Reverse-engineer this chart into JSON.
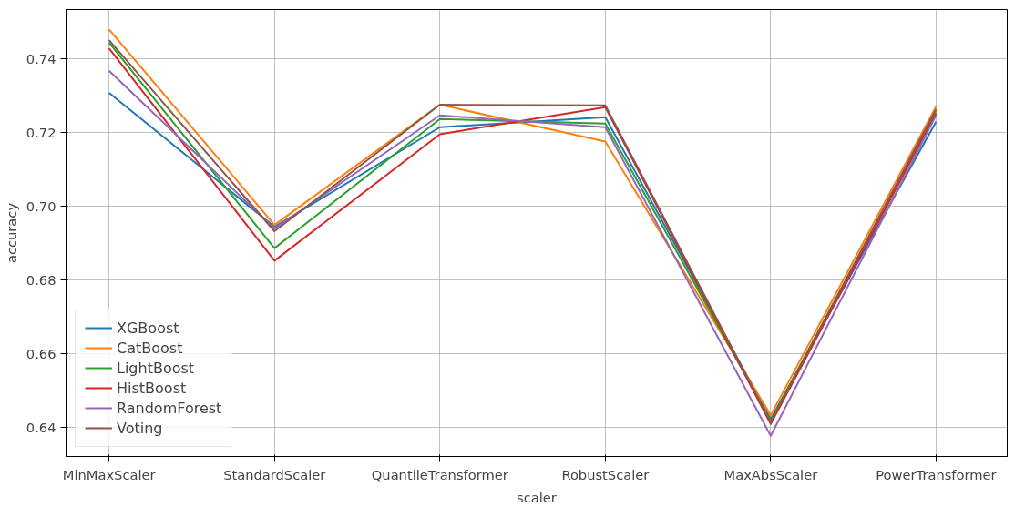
{
  "chart_data": {
    "type": "line",
    "xlabel": "scaler",
    "ylabel": "accuracy",
    "categories": [
      "MinMaxScaler",
      "StandardScaler",
      "QuantileTransformer",
      "RobustScaler",
      "MaxAbsScaler",
      "PowerTransformer"
    ],
    "ylim": [
      0.6322,
      0.7534
    ],
    "yticks": [
      {
        "value": 0.64,
        "label": "0.64"
      },
      {
        "value": 0.66,
        "label": "0.66"
      },
      {
        "value": 0.68,
        "label": "0.68"
      },
      {
        "value": 0.7,
        "label": "0.70"
      },
      {
        "value": 0.72,
        "label": "0.72"
      },
      {
        "value": 0.74,
        "label": "0.74"
      }
    ],
    "grid": true,
    "legend": "bottom left",
    "line_style": "solid",
    "series": [
      {
        "name": "XGBoost",
        "color": "#1f77b4",
        "values": [
          0.7308,
          0.6945,
          0.7215,
          0.7242,
          0.6424,
          0.723
        ]
      },
      {
        "name": "CatBoost",
        "color": "#ff7f0e",
        "values": [
          0.748,
          0.695,
          0.7276,
          0.7176,
          0.6434,
          0.7271
        ]
      },
      {
        "name": "LightBoost",
        "color": "#2ca02c",
        "values": [
          0.7444,
          0.6887,
          0.7237,
          0.7225,
          0.642,
          0.7259
        ]
      },
      {
        "name": "HistBoost",
        "color": "#d62728",
        "values": [
          0.7429,
          0.6853,
          0.7196,
          0.7269,
          0.641,
          0.7252
        ]
      },
      {
        "name": "RandomForest",
        "color": "#9467bd",
        "values": [
          0.7368,
          0.694,
          0.7247,
          0.7215,
          0.6378,
          0.7247
        ]
      },
      {
        "name": "Voting",
        "color": "#8c564b",
        "values": [
          0.7451,
          0.6933,
          0.7276,
          0.7274,
          0.6415,
          0.7264
        ]
      }
    ]
  }
}
